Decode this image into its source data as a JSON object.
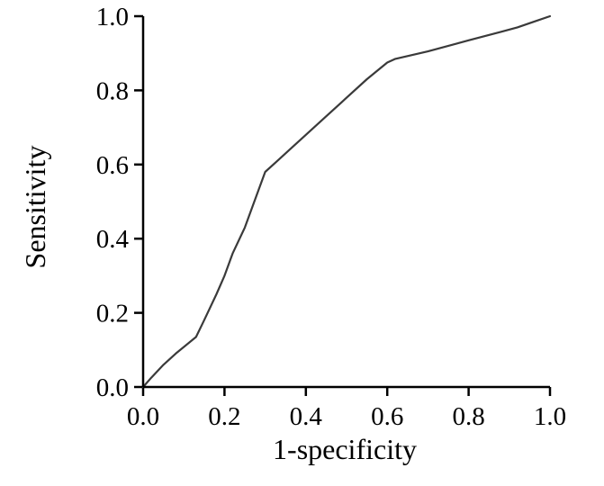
{
  "chart_data": {
    "type": "line",
    "title": "",
    "xlabel": "1-specificity",
    "ylabel": "Sensitivity",
    "xlim": [
      0.0,
      1.0
    ],
    "ylim": [
      0.0,
      1.0
    ],
    "x_ticks": [
      "0.0",
      "0.2",
      "0.4",
      "0.6",
      "0.8",
      "1.0"
    ],
    "y_ticks": [
      "0.0",
      "0.2",
      "0.4",
      "0.6",
      "0.8",
      "1.0"
    ],
    "grid": false,
    "legend": "none",
    "series": [
      {
        "color": "#3a3a3a",
        "x": [
          0.0,
          0.02,
          0.05,
          0.08,
          0.13,
          0.15,
          0.18,
          0.2,
          0.22,
          0.25,
          0.27,
          0.3,
          0.33,
          0.36,
          0.4,
          0.45,
          0.5,
          0.55,
          0.6,
          0.62,
          0.7,
          0.8,
          0.88,
          0.92,
          0.96,
          1.0
        ],
        "y": [
          0.0,
          0.025,
          0.06,
          0.09,
          0.135,
          0.18,
          0.25,
          0.3,
          0.36,
          0.43,
          0.49,
          0.58,
          0.61,
          0.64,
          0.68,
          0.73,
          0.78,
          0.83,
          0.875,
          0.885,
          0.905,
          0.935,
          0.958,
          0.97,
          0.985,
          1.0
        ]
      }
    ]
  }
}
